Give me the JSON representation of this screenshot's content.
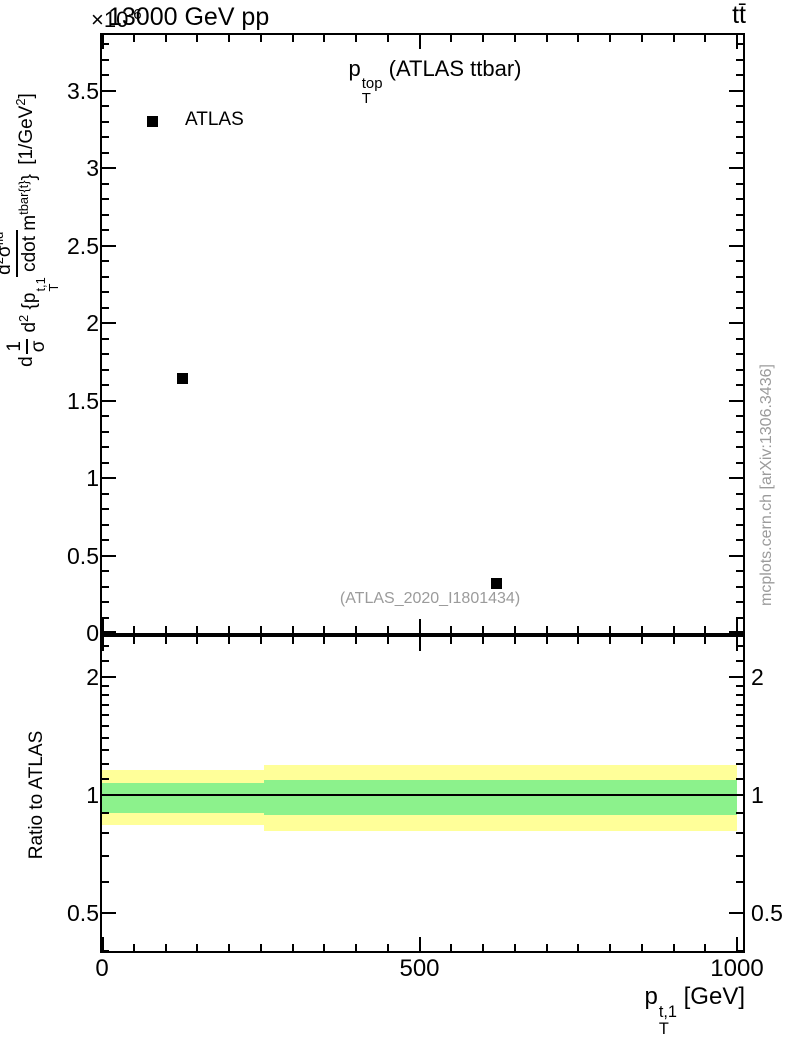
{
  "header": {
    "scale_prefix": "×10",
    "scale_exp": "-6",
    "beam": "13000 GeV pp",
    "process": "tt̄"
  },
  "main": {
    "title": {
      "p": "p",
      "sup": "top",
      "sub": "T",
      "rest": " (ATLAS ttbar)"
    },
    "legend": {
      "label": "ATLAS",
      "marker_color": "#000000"
    },
    "watermark": "(ATLAS_2020_I1801434)",
    "sidenote": "mcplots.cern.ch [arXiv:1306.3436]",
    "ylabel": {
      "prefix": "d",
      "f1num": "1",
      "f1den": "σ",
      "f2num": {
        "t1": "d",
        "s1": "2",
        "t2": "σ",
        "s2": "fid"
      },
      "f2den": {
        "t1": "d",
        "s1": "2",
        "t2": " {p",
        "sup": "t,1",
        "sub": "T",
        "t3": " cdot m",
        "s3": "tbar{t}",
        "t4": "}"
      },
      "u1": " [1/GeV",
      "usup": "2",
      "u2": "]"
    }
  },
  "ratio": {
    "ylabel": "Ratio to ATLAS"
  },
  "xaxis": {
    "label": {
      "p": "p",
      "sup": "t,1",
      "sub": "T",
      "rest": " [GeV]"
    }
  },
  "colors": {
    "band_yellow": "#ffff99",
    "band_green": "#8cf28c",
    "gray_text": "#9b9b9b",
    "marker_black": "#000000"
  },
  "chart_data": {
    "type": "scatter",
    "title": "pT^top (ATLAS ttbar)",
    "beam": "13000 GeV pp",
    "process": "ttbar",
    "xlabel": "pT^{t,1} [GeV]",
    "ylabel": "d 1/σ d²σ^{fid}/d²{pT^{t,1} cdot m^{tbar{t}}} [1/GeV²]",
    "y_unit_scale": "1e-6",
    "y_units": "1/GeV²",
    "xlim": [
      0,
      1009
    ],
    "ylim": [
      0,
      3.86
    ],
    "x_major_ticks": [
      {
        "v": 0,
        "label": "0"
      },
      {
        "v": 500,
        "label": "500"
      },
      {
        "v": 1000,
        "label": "1000"
      }
    ],
    "x_minor_step": 50,
    "y_major_ticks": [
      {
        "v": 3.5,
        "label": "3.5"
      },
      {
        "v": 3.0,
        "label": "3"
      },
      {
        "v": 2.5,
        "label": "2.5"
      },
      {
        "v": 2.0,
        "label": "2"
      },
      {
        "v": 1.5,
        "label": "1.5"
      },
      {
        "v": 1.0,
        "label": "1"
      },
      {
        "v": 0.5,
        "label": "0.5"
      },
      {
        "v": 0.0,
        "label": "0"
      }
    ],
    "y_minor_step": 0.1,
    "series": [
      {
        "name": "ATLAS",
        "marker": "filled-square",
        "color": "#000000",
        "points": [
          [
            126,
            1.64
          ],
          [
            621,
            0.32
          ]
        ]
      }
    ],
    "ratio_panel": {
      "ylabel": "Ratio to ATLAS",
      "scale": "log",
      "ylim": [
        0.4,
        2.53
      ],
      "major_ticks": [
        {
          "v": 2,
          "label": "2"
        },
        {
          "v": 1,
          "label": "1"
        },
        {
          "v": 0.5,
          "label": "0.5"
        }
      ],
      "minor_ticks": [
        0.4,
        0.6,
        0.7,
        0.8,
        0.9,
        1.1,
        1.2,
        1.3,
        1.4,
        1.5,
        1.6,
        1.7,
        1.8,
        1.9,
        2.2,
        2.4
      ],
      "reference_line": 1.0,
      "bands": [
        {
          "x_range": [
            0,
            255
          ],
          "outer": [
            0.84,
            1.16
          ],
          "inner": [
            0.9,
            1.07
          ]
        },
        {
          "x_range": [
            255,
            1000
          ],
          "outer": [
            0.81,
            1.19
          ],
          "inner": [
            0.89,
            1.09
          ]
        }
      ]
    }
  }
}
